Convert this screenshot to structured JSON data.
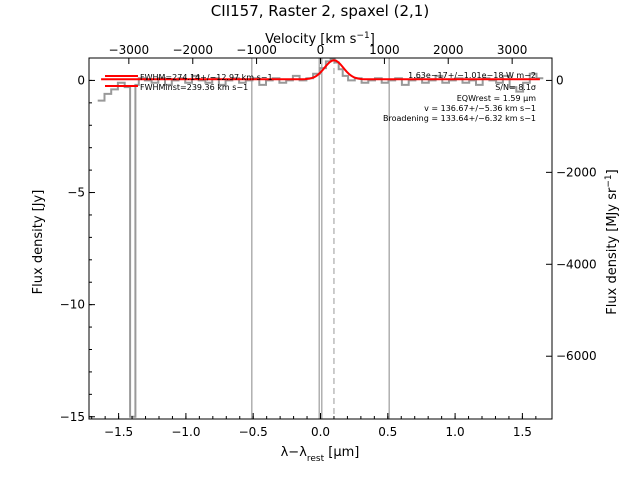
{
  "chart_data": {
    "type": "line",
    "title": "CII157, Raster 2, spaxel (2,1)",
    "xlabel": "λ−λ",
    "xlabel_sub": "rest",
    "xlabel_unit": " [μm]",
    "ylabel": "Flux density [Jy]",
    "top_xlabel": "Velocity [km s",
    "top_xlabel_sup": "−1",
    "top_xlabel_end": "]",
    "right_ylabel": "Flux density [MJy sr",
    "right_ylabel_sup": "−1",
    "right_ylabel_end": "]",
    "xlim": [
      -1.72,
      1.72
    ],
    "ylim": [
      -15.1,
      1.0
    ],
    "x_ticks": [
      -1.5,
      -1.0,
      -0.5,
      0.0,
      0.5,
      1.0,
      1.5
    ],
    "x_tick_labels": [
      "−1.5",
      "−1.0",
      "−0.5",
      "0.0",
      "0.5",
      "1.0",
      "1.5"
    ],
    "y_ticks": [
      0,
      -5,
      -10,
      -15
    ],
    "y_tick_labels": [
      "0",
      "−5",
      "−10",
      "−15"
    ],
    "top_ticks_um": [
      -1.424,
      -0.949,
      -0.475,
      0.0,
      0.475,
      0.949,
      1.424
    ],
    "top_tick_labels": [
      "−3000",
      "−2000",
      "−1000",
      "0",
      "1000",
      "2000",
      "3000"
    ],
    "right_ticks_jy": [
      0.0,
      -4.1,
      -8.2,
      -12.3
    ],
    "right_tick_labels": [
      "0",
      "−2000",
      "−4000",
      "−6000"
    ],
    "vertical_lines_um": [
      -0.51,
      0.51,
      -0.01,
      0.01
    ],
    "line_center_um": 0.1,
    "series": [
      {
        "color": "#999999",
        "style": "steps",
        "x": [
          -1.63,
          -1.58,
          -1.53,
          -1.48,
          -1.43,
          -1.4,
          -1.38,
          -1.37,
          -1.33,
          -1.28,
          -1.23,
          -1.18,
          -1.13,
          -1.08,
          -1.03,
          -0.98,
          -0.93,
          -0.88,
          -0.83,
          -0.78,
          -0.73,
          -0.68,
          -0.63,
          -0.58,
          -0.53,
          -0.48,
          -0.43,
          -0.38,
          -0.33,
          -0.28,
          -0.23,
          -0.18,
          -0.13,
          -0.08,
          -0.03,
          0.02,
          0.06,
          0.09,
          0.12,
          0.15,
          0.18,
          0.23,
          0.28,
          0.33,
          0.38,
          0.43,
          0.48,
          0.53,
          0.58,
          0.63,
          0.68,
          0.73,
          0.78,
          0.83,
          0.88,
          0.93,
          0.98,
          1.03,
          1.08,
          1.13,
          1.18,
          1.23,
          1.28,
          1.33,
          1.38,
          1.43,
          1.48,
          1.53,
          1.58,
          1.63
        ],
        "y": [
          -0.9,
          -0.6,
          -0.4,
          -0.1,
          -0.3,
          -15.0,
          -15.0,
          -0.2,
          0.1,
          0.0,
          -0.1,
          0.1,
          -0.2,
          0.0,
          0.1,
          -0.1,
          0.2,
          0.0,
          -0.1,
          0.1,
          -0.2,
          0.0,
          0.1,
          -0.1,
          0.0,
          0.1,
          -0.2,
          0.0,
          0.1,
          -0.1,
          0.0,
          0.2,
          0.0,
          0.1,
          0.3,
          0.55,
          0.85,
          0.95,
          0.8,
          0.5,
          0.2,
          0.0,
          0.1,
          -0.1,
          0.0,
          0.1,
          -0.1,
          0.0,
          0.1,
          -0.2,
          0.0,
          0.1,
          -0.1,
          0.0,
          0.2,
          -0.1,
          0.0,
          0.1,
          -0.1,
          0.0,
          -0.2,
          0.1,
          0.0,
          -0.1,
          0.2,
          -0.3,
          -0.5,
          -0.1,
          0.3,
          0.1
        ]
      },
      {
        "color": "#ff0000",
        "style": "line",
        "baseline": 0.05,
        "peak": 0.85,
        "center": 0.1,
        "sigma": 0.07,
        "x_range": [
          -1.63,
          1.63
        ]
      }
    ]
  },
  "annotations": {
    "left": [
      "FWHM=274.14+/−12.97 km s−1",
      "FWHMinst=239.36 km s−1"
    ],
    "right": [
      "1.63e−17+/−1.01e−18 W m−2",
      "S/N= 8.1σ",
      "EQWrest = 1.59 μm",
      "v = 136.67+/−5.36 km s−1",
      "Broadening = 133.64+/−6.32 km s−1"
    ]
  }
}
